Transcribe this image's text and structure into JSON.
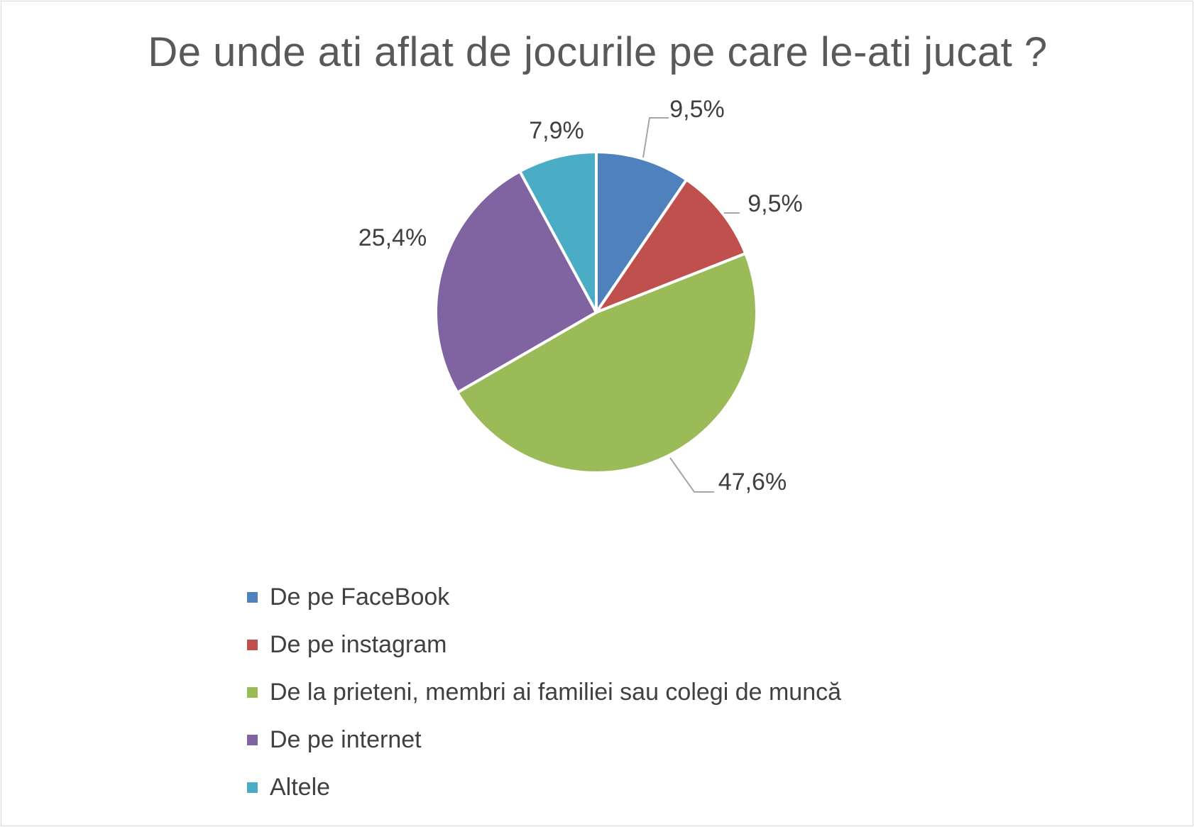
{
  "chart_data": {
    "type": "pie",
    "title": "De unde ati aflat de jocurile pe care le-ati jucat ?",
    "categories": [
      "De pe FaceBook",
      "De pe instagram",
      "De la prieteni, membri ai familiei sau colegi de muncă",
      "De pe internet",
      "Altele"
    ],
    "values": [
      9.5,
      9.5,
      47.6,
      25.4,
      7.9
    ],
    "data_labels": [
      "9,5%",
      "9,5%",
      "47,6%",
      "25,4%",
      "7,9%"
    ],
    "colors": [
      "#4f81bd",
      "#c0504d",
      "#9bbb59",
      "#8064a2",
      "#4bacc6"
    ],
    "legend_position": "bottom",
    "start_angle_deg": 0,
    "direction": "clockwise"
  }
}
